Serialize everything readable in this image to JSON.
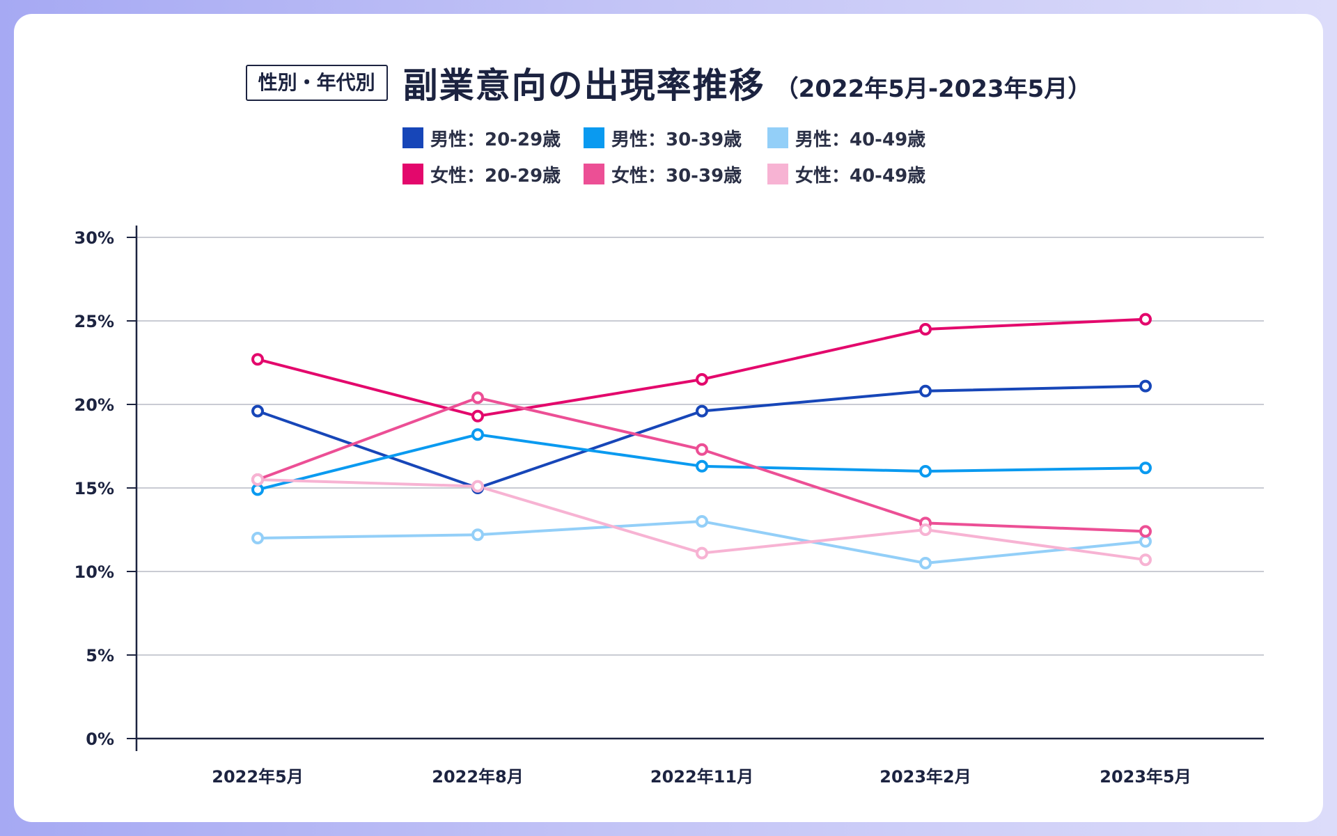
{
  "header": {
    "badge": "性別・年代別",
    "title": "副業意向の出現率推移",
    "subtitle": "（2022年5月-2023年5月）"
  },
  "chart_data": {
    "type": "line",
    "title": "副業意向の出現率推移",
    "subtitle": "（2022年5月-2023年5月）",
    "categories": [
      "2022年5月",
      "2022年8月",
      "2022年11月",
      "2023年2月",
      "2023年5月"
    ],
    "y_ticks": [
      "0%",
      "5%",
      "10%",
      "15%",
      "20%",
      "25%",
      "30%"
    ],
    "ylim": [
      0,
      30
    ],
    "y_unit": "%",
    "grid": true,
    "legend_position": "top-center",
    "series": [
      {
        "name": "男性：20-29歳",
        "color": "#1746b8",
        "values": [
          19.6,
          15.0,
          19.6,
          20.8,
          21.1
        ]
      },
      {
        "name": "男性：30-39歳",
        "color": "#0a9af0",
        "values": [
          14.9,
          18.2,
          16.3,
          16.0,
          16.2
        ]
      },
      {
        "name": "男性：40-49歳",
        "color": "#93cff8",
        "values": [
          12.0,
          12.2,
          13.0,
          10.5,
          11.8
        ]
      },
      {
        "name": "女性：20-29歳",
        "color": "#e3086c",
        "values": [
          22.7,
          19.3,
          21.5,
          24.5,
          25.1
        ]
      },
      {
        "name": "女性：30-39歳",
        "color": "#ec4f95",
        "values": [
          15.5,
          20.4,
          17.3,
          12.9,
          12.4
        ]
      },
      {
        "name": "女性：40-49歳",
        "color": "#f7b3d3",
        "values": [
          15.5,
          15.1,
          11.1,
          12.5,
          10.7
        ]
      }
    ]
  }
}
